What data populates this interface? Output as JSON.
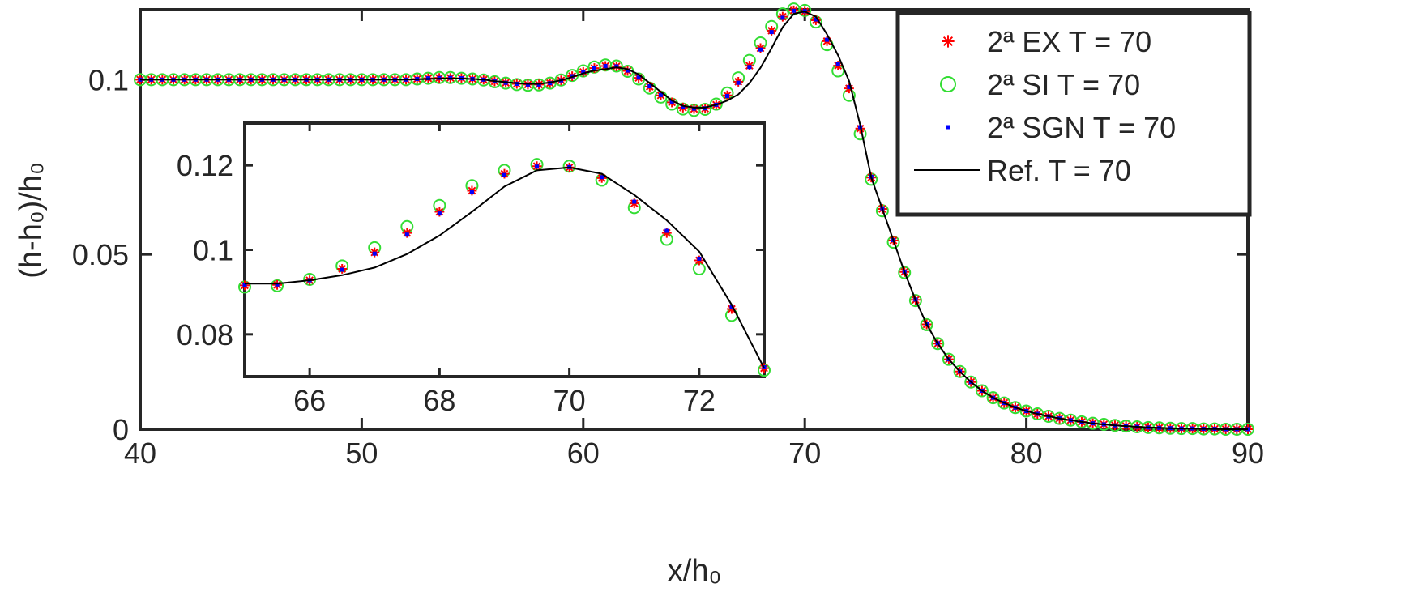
{
  "chart_data": {
    "type": "line",
    "xlabel": "x/h₀",
    "ylabel": "(h-h₀)/h₀",
    "xlim": [
      40,
      90
    ],
    "ylim": [
      0,
      0.12
    ],
    "xticks": [
      40,
      50,
      60,
      70,
      80,
      90
    ],
    "xtick_labels": [
      "40",
      "50",
      "60",
      "70",
      "80",
      "90"
    ],
    "yticks": [
      0,
      0.05,
      0.1
    ],
    "ytick_labels": [
      "0",
      "0.05",
      "0.1"
    ],
    "grid": false,
    "legend_position": "top-right",
    "x_start": 40,
    "x_step": 0.5,
    "series": [
      {
        "name": "2ª EX T = 70",
        "marker": "asterisk",
        "color": "#ff0000",
        "values": [
          0.1,
          0.1,
          0.1,
          0.1,
          0.1,
          0.1,
          0.1,
          0.1,
          0.1,
          0.1,
          0.1,
          0.1,
          0.1,
          0.1,
          0.1,
          0.1,
          0.1,
          0.1,
          0.1,
          0.1,
          0.1,
          0.1,
          0.1,
          0.1,
          0.1,
          0.1002,
          0.1004,
          0.1005,
          0.1005,
          0.1004,
          0.1002,
          0.1,
          0.0995,
          0.0991,
          0.0988,
          0.0986,
          0.0986,
          0.099,
          0.0998,
          0.101,
          0.1022,
          0.1033,
          0.1039,
          0.1038,
          0.1025,
          0.1005,
          0.098,
          0.0955,
          0.0935,
          0.092,
          0.0916,
          0.0917,
          0.0928,
          0.0955,
          0.0994,
          0.104,
          0.109,
          0.114,
          0.118,
          0.1198,
          0.1195,
          0.117,
          0.111,
          0.104,
          0.0975,
          0.086,
          0.072,
          0.063,
          0.054,
          0.045,
          0.037,
          0.03,
          0.0245,
          0.02,
          0.0165,
          0.0135,
          0.011,
          0.009,
          0.0075,
          0.0062,
          0.0052,
          0.0044,
          0.0037,
          0.0031,
          0.0026,
          0.0021,
          0.0017,
          0.0014,
          0.0011,
          0.0009,
          0.0007,
          0.0005,
          0.0004,
          0.0003,
          0.0002,
          0.0002,
          0.0001,
          0.0001,
          0,
          0,
          0
        ]
      },
      {
        "name": "2ª SI T = 70",
        "marker": "circle",
        "color": "#33dd33",
        "values": [
          0.1,
          0.1,
          0.1,
          0.1,
          0.1,
          0.1,
          0.1,
          0.1,
          0.1,
          0.1,
          0.1,
          0.1,
          0.1,
          0.1,
          0.1,
          0.1,
          0.1,
          0.1,
          0.1,
          0.1,
          0.1,
          0.1,
          0.1,
          0.1,
          0.1,
          0.1002,
          0.1004,
          0.1006,
          0.1006,
          0.1004,
          0.1002,
          0.0999,
          0.0994,
          0.099,
          0.0986,
          0.0984,
          0.0985,
          0.099,
          0.0999,
          0.1012,
          0.1025,
          0.1036,
          0.1042,
          0.1039,
          0.1024,
          0.1002,
          0.0976,
          0.095,
          0.093,
          0.0916,
          0.0912,
          0.0915,
          0.093,
          0.0962,
          0.1005,
          0.1055,
          0.1105,
          0.1152,
          0.1188,
          0.1202,
          0.1198,
          0.1165,
          0.11,
          0.1025,
          0.0955,
          0.0845,
          0.0715,
          0.0625,
          0.0535,
          0.0448,
          0.0368,
          0.0299,
          0.0245,
          0.02,
          0.0165,
          0.0135,
          0.011,
          0.009,
          0.0075,
          0.0062,
          0.0052,
          0.0044,
          0.0037,
          0.0031,
          0.0026,
          0.0021,
          0.0017,
          0.0014,
          0.0011,
          0.0009,
          0.0007,
          0.0005,
          0.0004,
          0.0003,
          0.0002,
          0.0002,
          0.0001,
          0.0001,
          0,
          0,
          0
        ]
      },
      {
        "name": "2ª SGN T = 70",
        "marker": "square",
        "color": "#0000ff",
        "values": [
          0.1,
          0.1,
          0.1,
          0.1,
          0.1,
          0.1,
          0.1,
          0.1,
          0.1,
          0.1,
          0.1,
          0.1,
          0.1,
          0.1,
          0.1,
          0.1,
          0.1,
          0.1,
          0.1,
          0.1,
          0.1,
          0.1,
          0.1,
          0.1,
          0.1,
          0.1002,
          0.1004,
          0.1005,
          0.1005,
          0.1004,
          0.1002,
          0.1,
          0.0995,
          0.0991,
          0.0988,
          0.0986,
          0.0986,
          0.099,
          0.0998,
          0.101,
          0.1022,
          0.1033,
          0.1039,
          0.1038,
          0.1026,
          0.1006,
          0.0981,
          0.0956,
          0.0936,
          0.0921,
          0.0917,
          0.0918,
          0.0928,
          0.0953,
          0.0991,
          0.1036,
          0.1086,
          0.1136,
          0.1177,
          0.1197,
          0.1196,
          0.1172,
          0.1114,
          0.1045,
          0.0979,
          0.0864,
          0.0722,
          0.0632,
          0.0541,
          0.0451,
          0.0371,
          0.0301,
          0.0246,
          0.02,
          0.0165,
          0.0135,
          0.011,
          0.009,
          0.0075,
          0.0062,
          0.0052,
          0.0044,
          0.0037,
          0.0031,
          0.0026,
          0.0021,
          0.0017,
          0.0014,
          0.0011,
          0.0009,
          0.0007,
          0.0005,
          0.0004,
          0.0003,
          0.0002,
          0.0002,
          0.0001,
          0.0001,
          0,
          0,
          0
        ]
      },
      {
        "name": "Ref. T = 70",
        "marker": "line",
        "color": "#000000",
        "values": [
          0.1,
          0.1,
          0.1,
          0.1,
          0.1,
          0.1,
          0.1,
          0.1,
          0.1,
          0.1,
          0.1,
          0.1,
          0.1,
          0.1,
          0.1,
          0.1,
          0.1,
          0.1,
          0.1,
          0.1,
          0.1,
          0.1,
          0.1,
          0.1,
          0.1,
          0.1001,
          0.1002,
          0.1003,
          0.1003,
          0.1003,
          0.1002,
          0.1,
          0.0996,
          0.0993,
          0.099,
          0.0988,
          0.0988,
          0.0992,
          0.0998,
          0.1008,
          0.1018,
          0.1026,
          0.103,
          0.1035,
          0.103,
          0.1015,
          0.099,
          0.0965,
          0.094,
          0.0925,
          0.092,
          0.092,
          0.0928,
          0.094,
          0.0958,
          0.099,
          0.1034,
          0.109,
          0.115,
          0.1188,
          0.1195,
          0.118,
          0.113,
          0.107,
          0.0996,
          0.087,
          0.072,
          0.063,
          0.054,
          0.045,
          0.037,
          0.03,
          0.0245,
          0.02,
          0.0165,
          0.0135,
          0.011,
          0.009,
          0.0075,
          0.0062,
          0.0052,
          0.0044,
          0.0037,
          0.0031,
          0.0026,
          0.0021,
          0.0017,
          0.0014,
          0.0011,
          0.0009,
          0.0007,
          0.0005,
          0.0004,
          0.0003,
          0.0002,
          0.0002,
          0.0001,
          0.0001,
          0,
          0,
          0
        ]
      }
    ],
    "inset": {
      "xlim": [
        65,
        73
      ],
      "ylim": [
        0.07,
        0.13
      ],
      "xticks": [
        66,
        68,
        70,
        72
      ],
      "xtick_labels": [
        "66",
        "68",
        "70",
        "72"
      ],
      "yticks": [
        0.08,
        0.1,
        0.12
      ],
      "ytick_labels": [
        "0.08",
        "0.1",
        "0.12"
      ]
    }
  }
}
